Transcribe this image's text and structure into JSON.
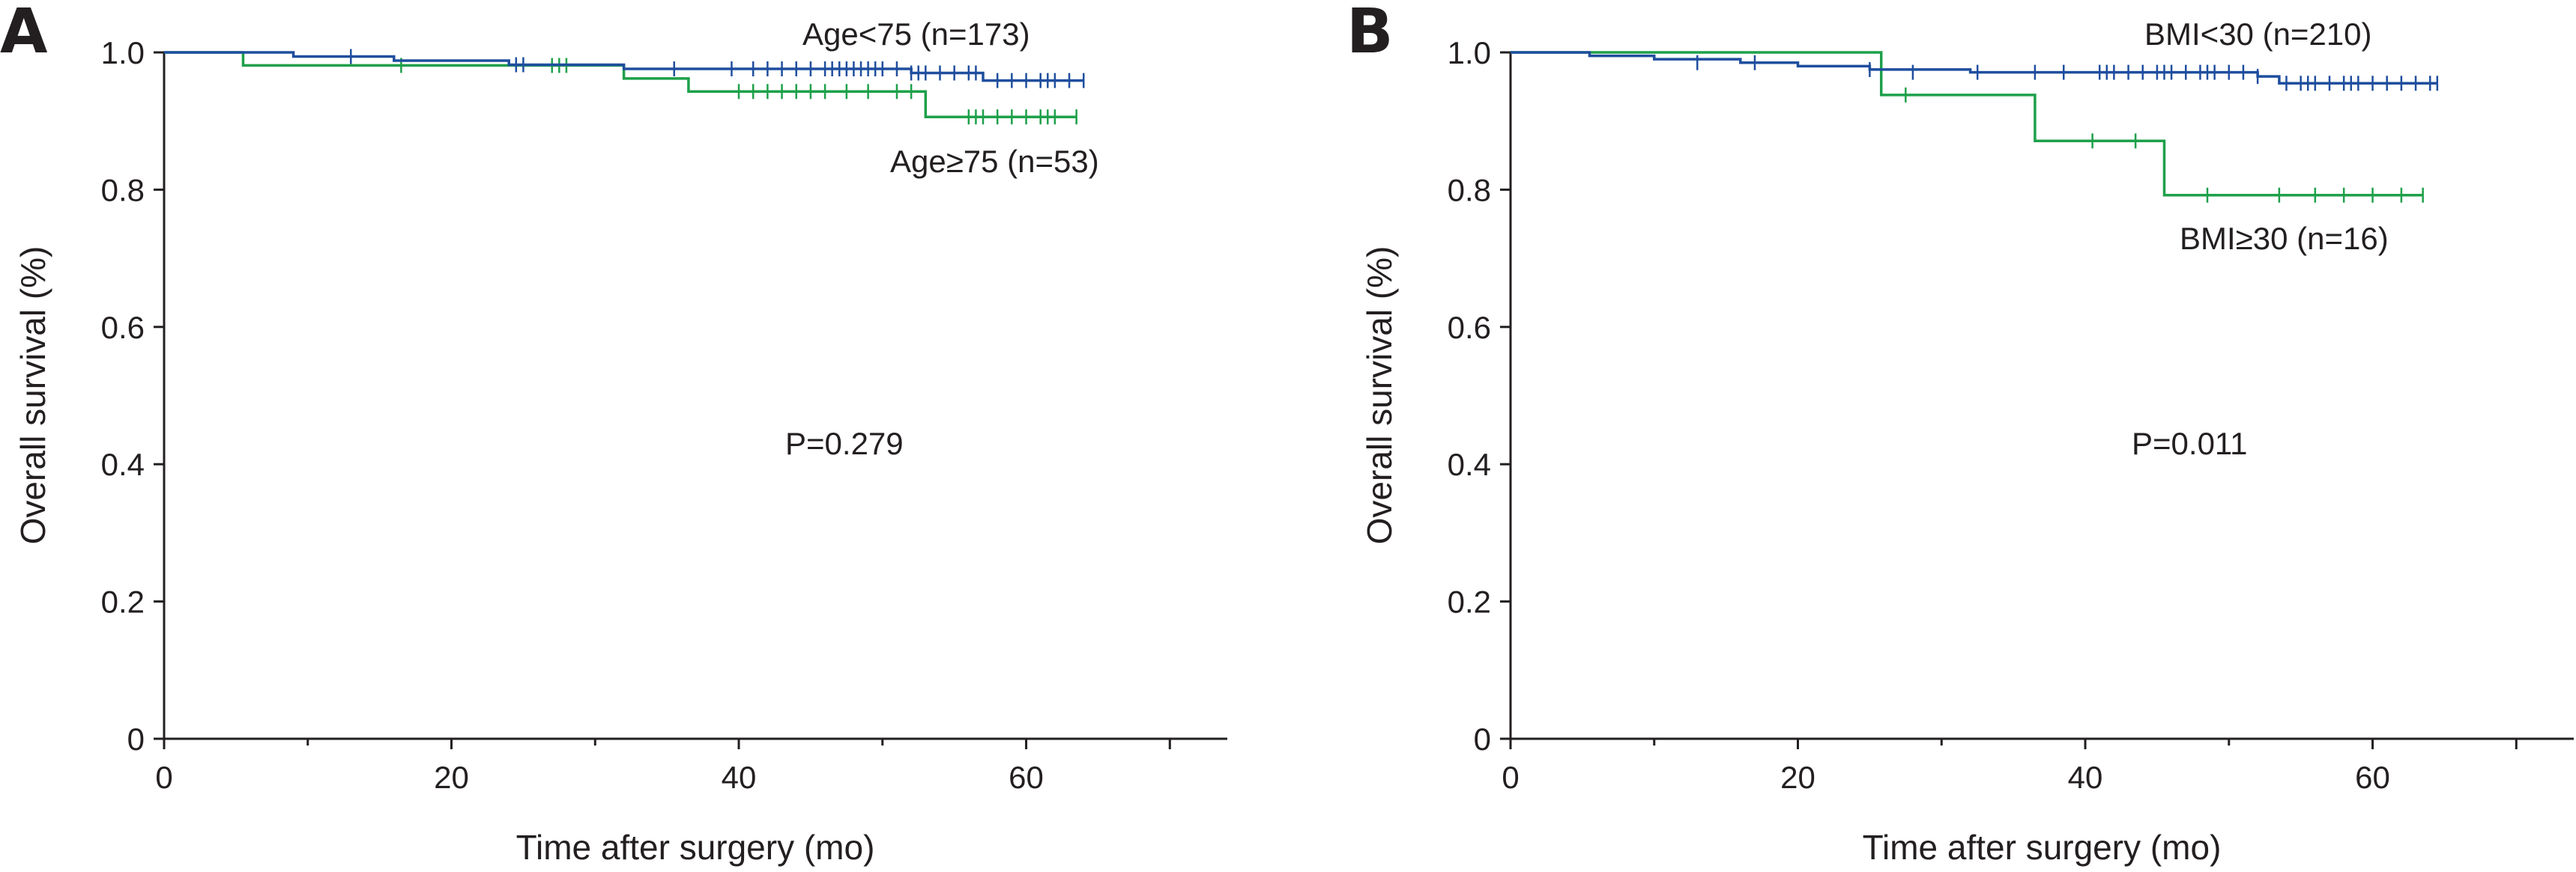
{
  "colors": {
    "blue": "#1f4e9e",
    "green": "#1ea04a",
    "axis": "#231f20"
  },
  "chart_data": [
    {
      "type": "line",
      "panel": "A",
      "xlabel": "Time after surgery (mo)",
      "ylabel": "Overall survival (%)",
      "xlim": [
        0,
        74
      ],
      "ylim": [
        0,
        1.0
      ],
      "x_ticks": [
        0,
        20,
        40,
        60
      ],
      "y_ticks": [
        0,
        0.2,
        0.4,
        0.6,
        0.8,
        1.0
      ],
      "x_tick_labels": [
        "0",
        "20",
        "40",
        "60"
      ],
      "y_tick_labels": [
        "0",
        "0.2",
        "0.4",
        "0.6",
        "0.8",
        "1.0"
      ],
      "annotation": "P=0.279",
      "series": [
        {
          "name": "Age<75 (n=173)",
          "color": "blue",
          "steps": [
            [
              0,
              1.0
            ],
            [
              9,
              0.994
            ],
            [
              16,
              0.988
            ],
            [
              24,
              0.982
            ],
            [
              32,
              0.976
            ],
            [
              52,
              0.97
            ],
            [
              57,
              0.959
            ],
            [
              64,
              0.959
            ]
          ],
          "censored": [
            [
              13,
              0.994
            ],
            [
              24.5,
              0.982
            ],
            [
              25,
              0.982
            ],
            [
              35.5,
              0.976
            ],
            [
              39.5,
              0.976
            ],
            [
              41,
              0.976
            ],
            [
              42,
              0.976
            ],
            [
              43,
              0.976
            ],
            [
              44,
              0.976
            ],
            [
              45,
              0.976
            ],
            [
              46,
              0.976
            ],
            [
              46.5,
              0.976
            ],
            [
              47,
              0.976
            ],
            [
              47.5,
              0.976
            ],
            [
              48,
              0.976
            ],
            [
              48.5,
              0.976
            ],
            [
              49,
              0.976
            ],
            [
              49.5,
              0.976
            ],
            [
              50,
              0.976
            ],
            [
              51,
              0.976
            ],
            [
              52,
              0.97
            ],
            [
              52.5,
              0.97
            ],
            [
              53,
              0.97
            ],
            [
              54,
              0.97
            ],
            [
              55,
              0.97
            ],
            [
              56,
              0.97
            ],
            [
              56.5,
              0.97
            ],
            [
              58,
              0.959
            ],
            [
              59,
              0.959
            ],
            [
              60,
              0.959
            ],
            [
              61,
              0.959
            ],
            [
              61.5,
              0.959
            ],
            [
              62,
              0.959
            ],
            [
              63,
              0.959
            ],
            [
              64,
              0.959
            ]
          ]
        },
        {
          "name": "Age≥75 (n=53)",
          "color": "green",
          "steps": [
            [
              0,
              1.0
            ],
            [
              5.5,
              0.981
            ],
            [
              32,
              0.962
            ],
            [
              36.5,
              0.943
            ],
            [
              53,
              0.906
            ],
            [
              63.5,
              0.906
            ]
          ],
          "censored": [
            [
              16.5,
              0.981
            ],
            [
              27,
              0.981
            ],
            [
              27.5,
              0.981
            ],
            [
              28,
              0.981
            ],
            [
              40,
              0.943
            ],
            [
              41,
              0.943
            ],
            [
              42,
              0.943
            ],
            [
              43,
              0.943
            ],
            [
              44,
              0.943
            ],
            [
              45,
              0.943
            ],
            [
              46,
              0.943
            ],
            [
              47.5,
              0.943
            ],
            [
              49,
              0.943
            ],
            [
              51,
              0.943
            ],
            [
              52,
              0.943
            ],
            [
              56,
              0.906
            ],
            [
              56.5,
              0.906
            ],
            [
              57,
              0.906
            ],
            [
              58,
              0.906
            ],
            [
              59,
              0.906
            ],
            [
              60,
              0.906
            ],
            [
              61,
              0.906
            ],
            [
              61.5,
              0.906
            ],
            [
              62,
              0.906
            ],
            [
              63.5,
              0.906
            ]
          ]
        }
      ]
    },
    {
      "type": "line",
      "panel": "B",
      "xlabel": "Time after surgery (mo)",
      "ylabel": "Overall survival (%)",
      "xlim": [
        0,
        74
      ],
      "ylim": [
        0,
        1.0
      ],
      "x_ticks": [
        0,
        20,
        40,
        60
      ],
      "y_ticks": [
        0,
        0.2,
        0.4,
        0.6,
        0.8,
        1.0
      ],
      "x_tick_labels": [
        "0",
        "20",
        "40",
        "60"
      ],
      "y_tick_labels": [
        "0",
        "0.2",
        "0.4",
        "0.6",
        "0.8",
        "1.0"
      ],
      "annotation": "P=0.011",
      "series": [
        {
          "name": "BMI<30 (n=210)",
          "color": "blue",
          "steps": [
            [
              0,
              1.0
            ],
            [
              5.5,
              0.995
            ],
            [
              10,
              0.99
            ],
            [
              16,
              0.985
            ],
            [
              20,
              0.98
            ],
            [
              25,
              0.975
            ],
            [
              32,
              0.971
            ],
            [
              52,
              0.965
            ],
            [
              53.5,
              0.955
            ],
            [
              64.5,
              0.955
            ]
          ],
          "censored": [
            [
              13,
              0.985
            ],
            [
              17,
              0.985
            ],
            [
              25,
              0.975
            ],
            [
              28,
              0.971
            ],
            [
              32.5,
              0.971
            ],
            [
              36.5,
              0.971
            ],
            [
              38.5,
              0.971
            ],
            [
              41,
              0.971
            ],
            [
              41.5,
              0.971
            ],
            [
              42,
              0.971
            ],
            [
              43,
              0.971
            ],
            [
              44,
              0.971
            ],
            [
              45,
              0.971
            ],
            [
              45.5,
              0.971
            ],
            [
              46,
              0.971
            ],
            [
              47,
              0.971
            ],
            [
              48,
              0.971
            ],
            [
              48.5,
              0.971
            ],
            [
              49,
              0.971
            ],
            [
              50,
              0.971
            ],
            [
              51,
              0.971
            ],
            [
              52,
              0.965
            ],
            [
              54,
              0.955
            ],
            [
              55,
              0.955
            ],
            [
              55.5,
              0.955
            ],
            [
              56,
              0.955
            ],
            [
              57,
              0.955
            ],
            [
              58,
              0.955
            ],
            [
              58.5,
              0.955
            ],
            [
              59,
              0.955
            ],
            [
              60,
              0.955
            ],
            [
              61,
              0.955
            ],
            [
              62,
              0.955
            ],
            [
              63,
              0.955
            ],
            [
              64,
              0.955
            ],
            [
              64.5,
              0.955
            ]
          ]
        },
        {
          "name": "BMI≥30 (n=16)",
          "color": "green",
          "steps": [
            [
              0,
              1.0
            ],
            [
              25.8,
              0.938
            ],
            [
              36.5,
              0.871
            ],
            [
              45.5,
              0.792
            ],
            [
              63.5,
              0.792
            ]
          ],
          "censored": [
            [
              27.5,
              0.938
            ],
            [
              40.5,
              0.871
            ],
            [
              43.5,
              0.871
            ],
            [
              48.5,
              0.792
            ],
            [
              53.5,
              0.792
            ],
            [
              56,
              0.792
            ],
            [
              58,
              0.792
            ],
            [
              60,
              0.792
            ],
            [
              62,
              0.792
            ],
            [
              63.5,
              0.792
            ]
          ]
        }
      ]
    }
  ]
}
